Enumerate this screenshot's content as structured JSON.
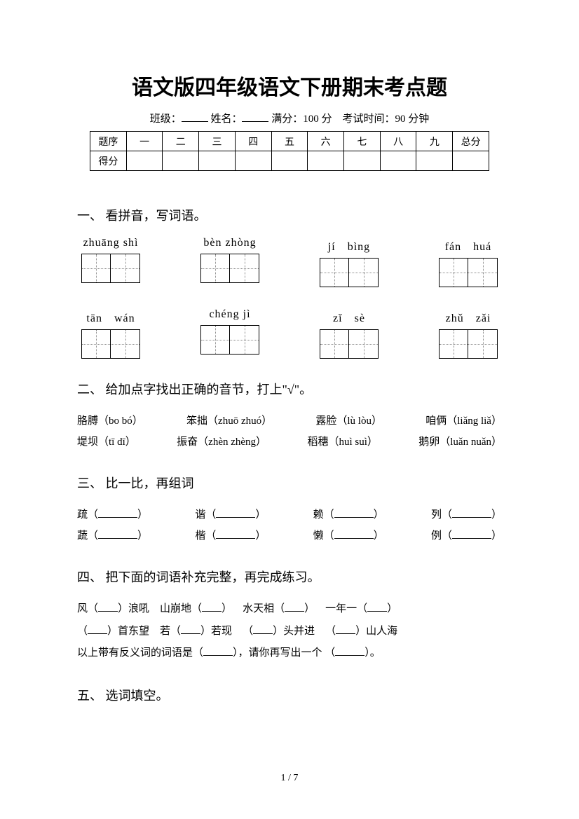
{
  "title": "语文版四年级语文下册期末考点题",
  "info": {
    "class_label": "班级：",
    "name_label": "姓名：",
    "full_score_label": "满分：",
    "full_score_value": "100 分",
    "time_label": "考试时间：",
    "time_value": "90 分钟"
  },
  "score_table": {
    "row1": [
      "题序",
      "一",
      "二",
      "三",
      "四",
      "五",
      "六",
      "七",
      "八",
      "九",
      "总分"
    ],
    "row2_label": "得分"
  },
  "q1": {
    "heading": "一、 看拼音，写词语。",
    "row1": [
      "zhuāng shì",
      "bèn zhòng",
      "jí　bìng",
      "fán　huá"
    ],
    "row2": [
      "tān　wán",
      "chéng jì",
      "zǐ　sè",
      "zhǔ　zǎi"
    ]
  },
  "q2": {
    "heading": "二、 给加点字找出正确的音节，打上\"√\"。",
    "line1_items": [
      "胳膊（bo  bó）",
      "笨拙（zhuō  zhuó）",
      "露脸（lù  lòu）",
      "咱俩（liǎng  liǎ）"
    ],
    "line2_items": [
      "堤坝（tī  dī）",
      "振奋（zhèn  zhèng）",
      "稻穗（huì  suì）",
      "鹅卵（luǎn  nuǎn）"
    ]
  },
  "q3": {
    "heading": "三、 比一比，再组词",
    "pairs": [
      [
        "疏",
        "蔬"
      ],
      [
        "谐",
        "楷"
      ],
      [
        "赖",
        "懒"
      ],
      [
        "列",
        "例"
      ]
    ]
  },
  "q4": {
    "heading": "四、 把下面的词语补充完整，再完成练习。",
    "line1": [
      "风（",
      "）浪吼",
      "山崩地（",
      "）",
      "水天相（",
      "）",
      "一年一（",
      "）"
    ],
    "line2": [
      "（",
      "）首东望",
      "若（",
      "）若现",
      "（",
      "）头并进",
      "（",
      "）山人海"
    ],
    "line3_a": "以上带有反义词的词语是（",
    "line3_b": "），请你再写出一个 （",
    "line3_c": "）。"
  },
  "q5": {
    "heading": "五、 选词填空。"
  },
  "page_num": "1 / 7"
}
